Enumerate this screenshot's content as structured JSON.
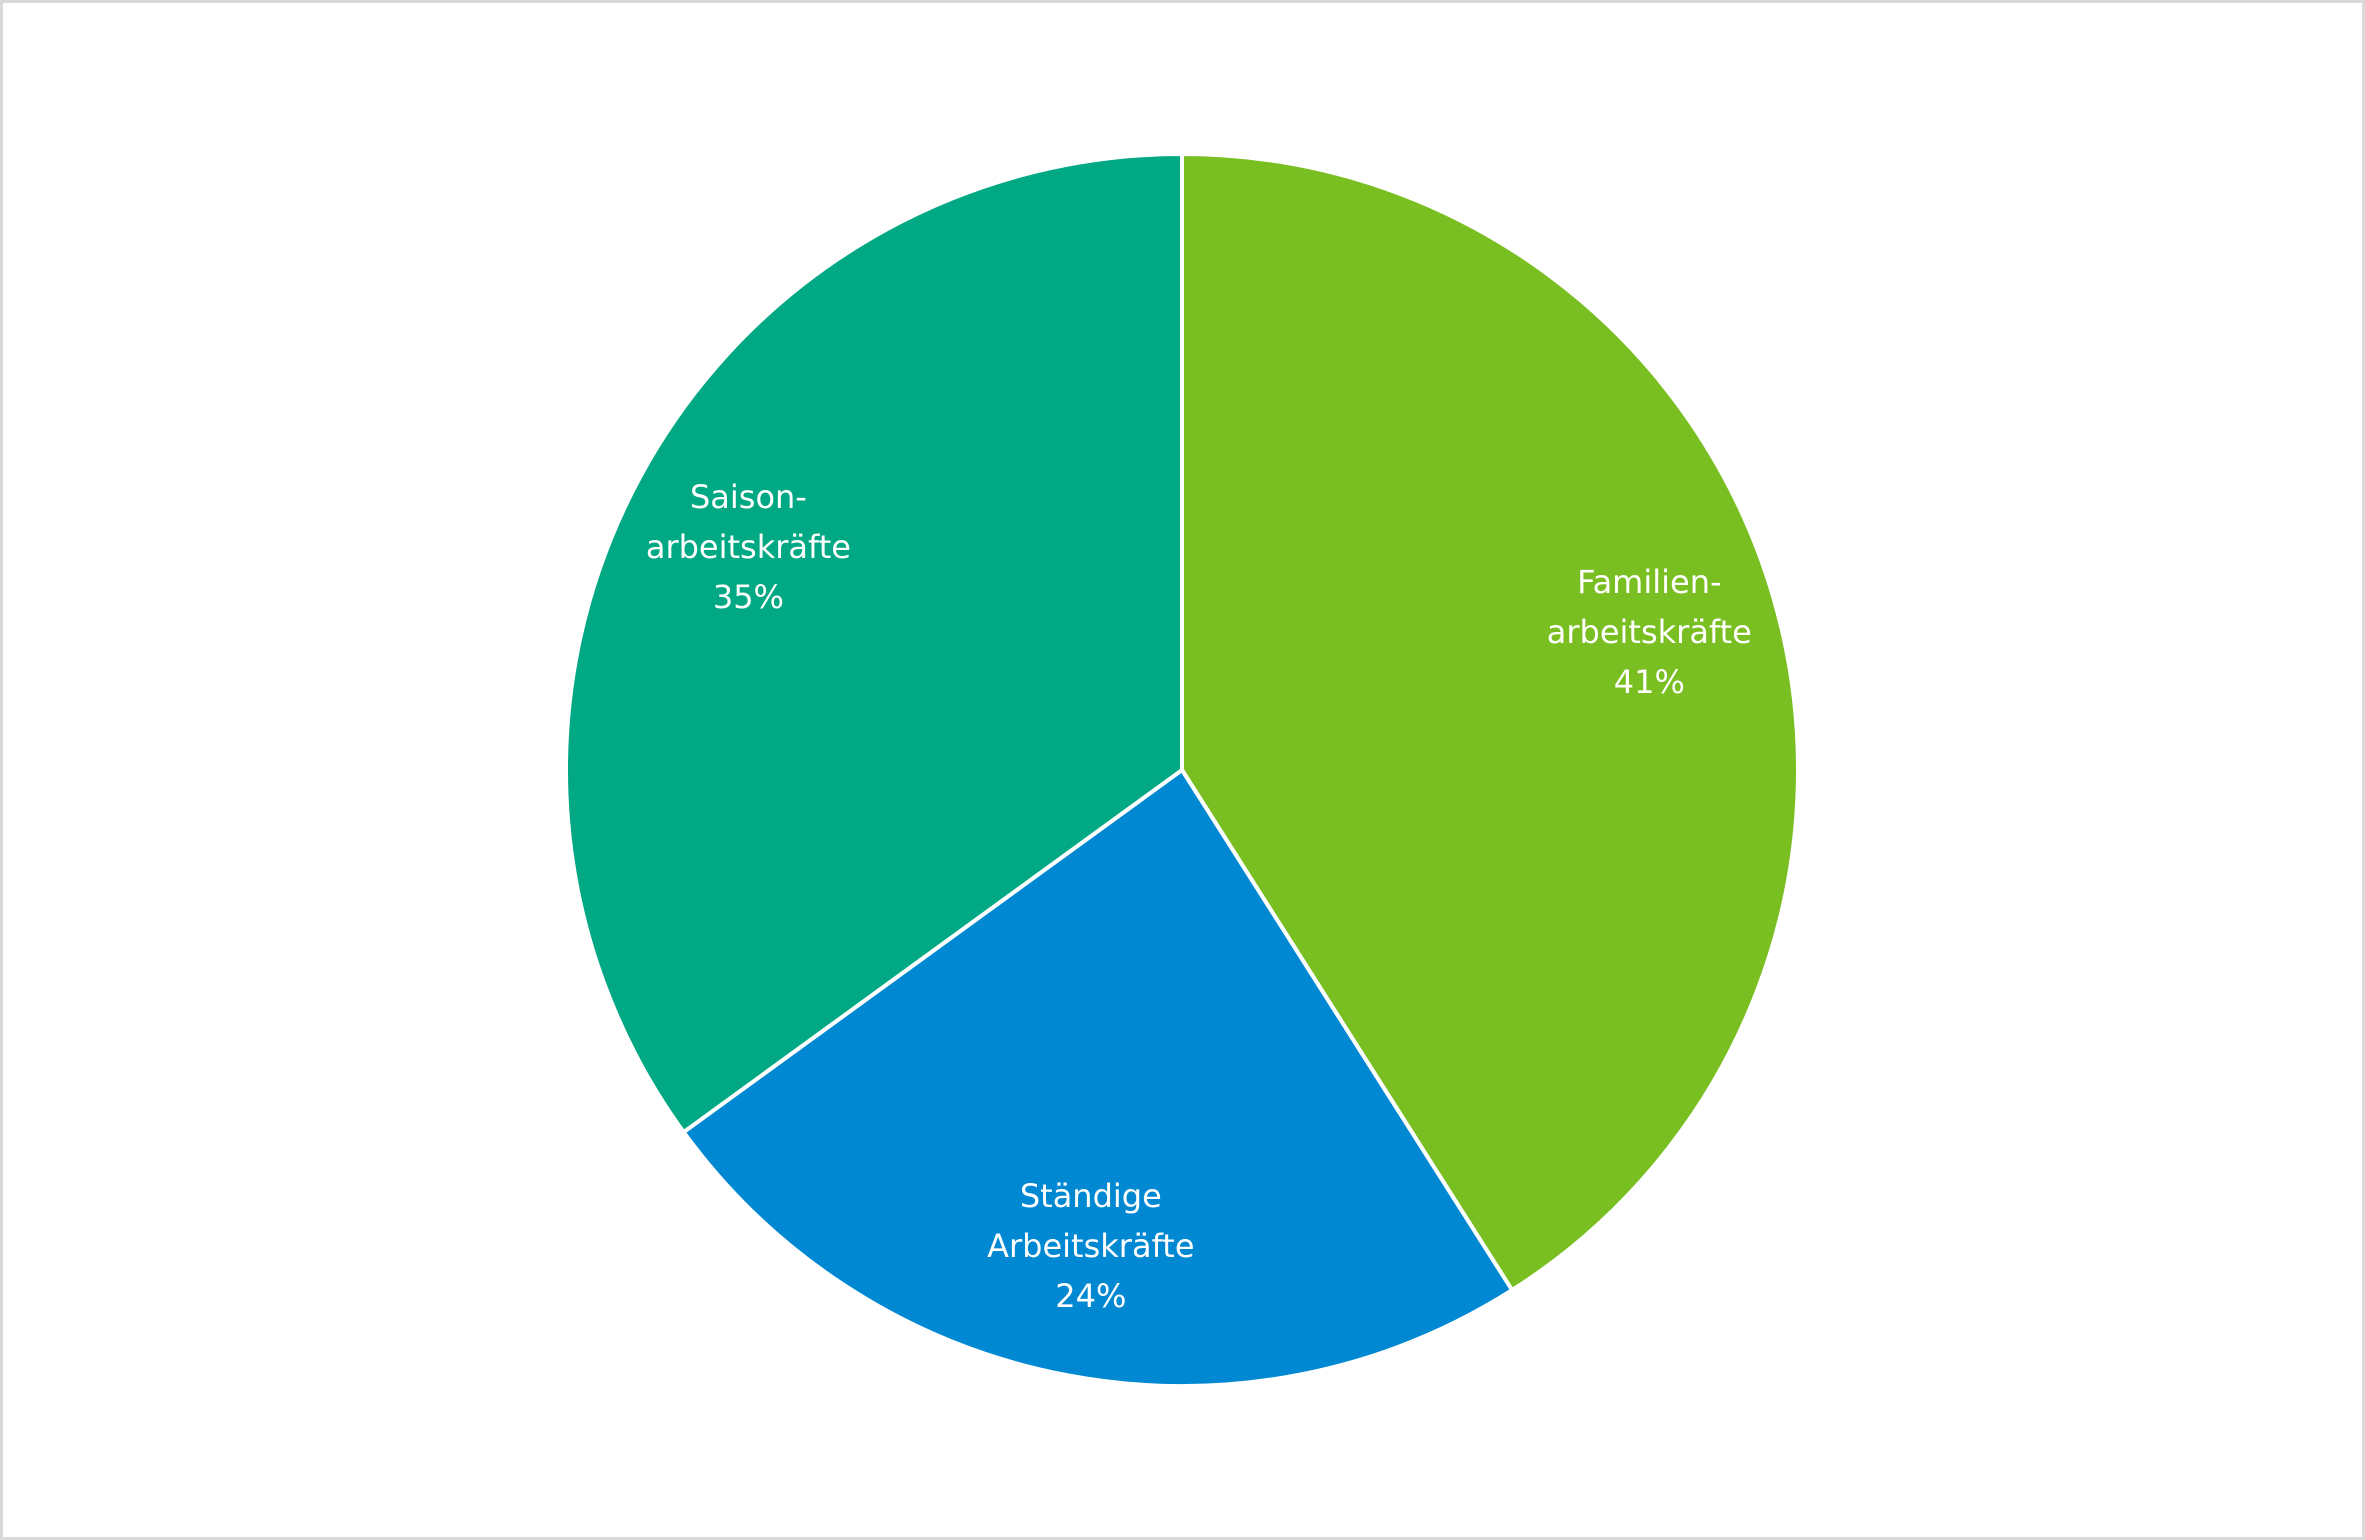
{
  "chart_data": {
    "type": "pie",
    "categories": [
      [
        "Familien-",
        "arbeitskräfte"
      ],
      [
        "Ständige",
        "Arbeitskräfte"
      ],
      [
        "Saison-",
        "arbeitskräfte"
      ]
    ],
    "values": [
      41,
      24,
      35
    ],
    "value_labels": [
      "41%",
      "24%",
      "35%"
    ],
    "colors": [
      "#7abf22",
      "#0088d3",
      "#00a983"
    ]
  }
}
